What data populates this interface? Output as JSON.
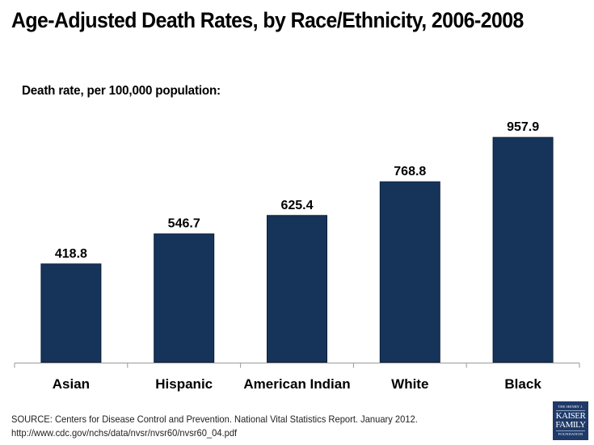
{
  "header": {
    "title": "Age-Adjusted Death Rates, by Race/Ethnicity, 2006-2008",
    "subtitle": "Death rate, per 100,000 population:"
  },
  "chart_data": {
    "type": "bar",
    "title": "Age-Adjusted Death Rates, by Race/Ethnicity, 2006-2008",
    "ylabel": "Death rate, per 100,000 population:",
    "xlabel": "",
    "categories": [
      "Asian",
      "Hispanic",
      "American Indian",
      "White",
      "Black"
    ],
    "values": [
      418.8,
      546.7,
      625.4,
      768.8,
      957.9
    ],
    "value_labels": [
      "418.8",
      "546.7",
      "625.4",
      "768.8",
      "957.9"
    ],
    "ylim": [
      0,
      1000
    ],
    "grid": false,
    "legend": "none",
    "bar_color": "#163459"
  },
  "footer": {
    "source_line1": "SOURCE: Centers for Disease Control and Prevention. National Vital Statistics Report. January 2012.",
    "source_line2": "http://www.cdc.gov/nchs/data/nvsr/nvsr60/nvsr60_04.pdf",
    "logo": {
      "line1": "THE HENRY J.",
      "line2": "KAISER",
      "line3": "FAMILY",
      "line4": "FOUNDATION"
    }
  }
}
